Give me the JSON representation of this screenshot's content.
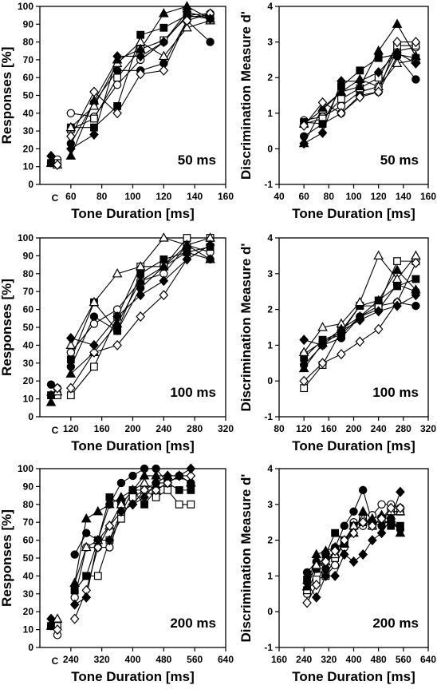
{
  "chart_data": [
    {
      "type": "line",
      "annotation": "50 ms",
      "xlabel": "Tone Duration [ms]",
      "ylabel": "Responses [%]",
      "xlim": [
        40,
        160
      ],
      "ylim": [
        0,
        100
      ],
      "xticks": [
        60,
        80,
        100,
        120,
        140,
        160
      ],
      "yticks": [
        0,
        10,
        20,
        30,
        40,
        50,
        60,
        70,
        80,
        90,
        100
      ],
      "xticklabels": [
        "60",
        "80",
        "100",
        "120",
        "140",
        "160"
      ],
      "yticklabels": [
        "0",
        "10",
        "20",
        "30",
        "40",
        "50",
        "60",
        "70",
        "80",
        "90",
        "100"
      ],
      "control_label": "C",
      "x": [
        60,
        75,
        90,
        105,
        120,
        135,
        150
      ],
      "series": [
        {
          "marker": "circle",
          "fill": "open",
          "control": 14,
          "values": [
            40,
            38,
            56,
            70,
            80,
            95,
            96
          ]
        },
        {
          "marker": "circle",
          "fill": "filled",
          "control": 12,
          "values": [
            23,
            46,
            64,
            64,
            68,
            92,
            80
          ]
        },
        {
          "marker": "square",
          "fill": "open",
          "control": 12,
          "values": [
            31,
            37,
            60,
            76,
            81,
            94,
            95
          ]
        },
        {
          "marker": "square",
          "fill": "filled",
          "control": 12,
          "values": [
            32,
            32,
            44,
            84,
            88,
            95,
            93
          ]
        },
        {
          "marker": "triangle",
          "fill": "open",
          "control": 11,
          "values": [
            32,
            44,
            68,
            80,
            72,
            88,
            92
          ]
        },
        {
          "marker": "triangle",
          "fill": "filled",
          "control": 12,
          "values": [
            16,
            47,
            70,
            76,
            96,
            100,
            93
          ]
        },
        {
          "marker": "diamond",
          "fill": "open",
          "control": 11,
          "values": [
            27,
            52,
            40,
            62,
            64,
            92,
            96
          ]
        },
        {
          "marker": "diamond",
          "fill": "filled",
          "control": 16,
          "values": [
            20,
            28,
            72,
            72,
            80,
            97,
            93
          ]
        }
      ]
    },
    {
      "type": "line",
      "annotation": "50 ms",
      "xlabel": "Tone Duration [ms]",
      "ylabel": "Discrimination Measure  d'",
      "xlim": [
        40,
        160
      ],
      "ylim": [
        -1,
        4
      ],
      "xticks": [
        40,
        60,
        80,
        100,
        120,
        140,
        160
      ],
      "yticks": [
        -1,
        0,
        1,
        2,
        3,
        4
      ],
      "xticklabels": [
        "40",
        "60",
        "80",
        "100",
        "120",
        "140",
        "160"
      ],
      "yticklabels": [
        "-1",
        "0",
        "1",
        "2",
        "3",
        "4"
      ],
      "x": [
        60,
        75,
        90,
        105,
        120,
        135,
        150
      ],
      "series": [
        {
          "marker": "circle",
          "fill": "open",
          "values": [
            0.8,
            0.9,
            1.2,
            1.6,
            1.75,
            2.75,
            2.85
          ]
        },
        {
          "marker": "circle",
          "fill": "filled",
          "values": [
            0.35,
            0.7,
            1.0,
            1.5,
            1.6,
            2.6,
            1.95
          ]
        },
        {
          "marker": "square",
          "fill": "open",
          "values": [
            0.7,
            0.85,
            1.4,
            1.7,
            2.0,
            2.9,
            2.9
          ]
        },
        {
          "marker": "square",
          "fill": "filled",
          "values": [
            0.75,
            0.7,
            1.75,
            2.2,
            2.55,
            2.65,
            2.55
          ]
        },
        {
          "marker": "triangle",
          "fill": "open",
          "values": [
            0.7,
            1.1,
            1.6,
            1.95,
            1.75,
            2.4,
            2.5
          ]
        },
        {
          "marker": "triangle",
          "fill": "filled",
          "values": [
            0.15,
            1.15,
            1.6,
            1.75,
            2.75,
            3.5,
            2.6
          ]
        },
        {
          "marker": "diamond",
          "fill": "open",
          "values": [
            0.65,
            1.3,
            1.0,
            1.45,
            1.6,
            3.0,
            3.0
          ]
        },
        {
          "marker": "diamond",
          "fill": "filled",
          "values": [
            0.15,
            0.45,
            1.9,
            1.9,
            2.15,
            2.7,
            2.4
          ]
        }
      ]
    },
    {
      "type": "line",
      "annotation": "100 ms",
      "xlabel": "Tone Duration [ms]",
      "ylabel": "Responses [%]",
      "xlim": [
        80,
        320
      ],
      "ylim": [
        0,
        100
      ],
      "xticks": [
        120,
        160,
        200,
        240,
        280,
        320
      ],
      "yticks": [
        0,
        10,
        20,
        30,
        40,
        50,
        60,
        70,
        80,
        90,
        100
      ],
      "xticklabels": [
        "120",
        "160",
        "200",
        "240",
        "280",
        "320"
      ],
      "yticklabels": [
        "0",
        "10",
        "20",
        "30",
        "40",
        "50",
        "60",
        "70",
        "80",
        "90",
        "100"
      ],
      "control_label": "C",
      "x": [
        120,
        150,
        180,
        210,
        240,
        270,
        300
      ],
      "series": [
        {
          "marker": "circle",
          "fill": "open",
          "control": 16,
          "values": [
            36,
            52,
            60,
            76,
            80,
            96,
            92
          ]
        },
        {
          "marker": "circle",
          "fill": "filled",
          "control": 18,
          "values": [
            28,
            56,
            48,
            72,
            84,
            92,
            88
          ]
        },
        {
          "marker": "square",
          "fill": "open",
          "control": 12,
          "values": [
            12,
            28,
            56,
            84,
            84,
            100,
            100
          ]
        },
        {
          "marker": "square",
          "fill": "filled",
          "control": 12,
          "values": [
            32,
            64,
            48,
            80,
            88,
            92,
            95
          ]
        },
        {
          "marker": "triangle",
          "fill": "open",
          "control": 14,
          "values": [
            40,
            64,
            80,
            84,
            100,
            96,
            100
          ]
        },
        {
          "marker": "triangle",
          "fill": "filled",
          "control": 8,
          "values": [
            24,
            36,
            52,
            76,
            84,
            96,
            88
          ]
        },
        {
          "marker": "diamond",
          "fill": "open",
          "control": 16,
          "values": [
            16,
            36,
            40,
            56,
            68,
            88,
            96
          ]
        },
        {
          "marker": "diamond",
          "fill": "filled",
          "control": 12,
          "values": [
            44,
            40,
            56,
            68,
            76,
            88,
            96
          ]
        }
      ]
    },
    {
      "type": "line",
      "annotation": "100 ms",
      "xlabel": "Tone Duration [ms]",
      "ylabel": "Discrimination Measure  d'",
      "xlim": [
        80,
        320
      ],
      "ylim": [
        -1,
        4
      ],
      "xticks": [
        80,
        120,
        160,
        200,
        240,
        280,
        320
      ],
      "yticks": [
        -1,
        0,
        1,
        2,
        3,
        4
      ],
      "xticklabels": [
        "80",
        "120",
        "160",
        "200",
        "240",
        "280",
        "320"
      ],
      "yticklabels": [
        "-1",
        "0",
        "1",
        "2",
        "3",
        "4"
      ],
      "x": [
        120,
        150,
        180,
        210,
        240,
        270,
        300
      ],
      "series": [
        {
          "marker": "circle",
          "fill": "open",
          "values": [
            0.75,
            1.1,
            1.3,
            1.8,
            2.0,
            2.7,
            2.5
          ]
        },
        {
          "marker": "circle",
          "fill": "filled",
          "values": [
            0.45,
            1.0,
            1.2,
            1.8,
            2.1,
            2.2,
            2.1
          ]
        },
        {
          "marker": "square",
          "fill": "open",
          "values": [
            -0.2,
            0.45,
            1.4,
            2.1,
            2.1,
            3.35,
            3.35
          ]
        },
        {
          "marker": "square",
          "fill": "filled",
          "values": [
            0.65,
            1.15,
            1.35,
            2.1,
            2.25,
            2.65,
            2.85
          ]
        },
        {
          "marker": "triangle",
          "fill": "open",
          "values": [
            0.8,
            1.5,
            1.6,
            2.2,
            3.5,
            2.85,
            3.5
          ]
        },
        {
          "marker": "triangle",
          "fill": "filled",
          "values": [
            0.35,
            1.05,
            1.45,
            1.8,
            2.25,
            3.1,
            2.55
          ]
        },
        {
          "marker": "diamond",
          "fill": "open",
          "values": [
            0.0,
            0.5,
            0.75,
            1.1,
            1.45,
            2.2,
            3.3
          ]
        },
        {
          "marker": "diamond",
          "fill": "filled",
          "values": [
            1.15,
            1.0,
            1.4,
            1.7,
            1.95,
            2.1,
            2.4
          ]
        }
      ]
    },
    {
      "type": "line",
      "annotation": "200 ms",
      "xlabel": "Tone Duration [ms]",
      "ylabel": "Responses [%]",
      "xlim": [
        160,
        640
      ],
      "ylim": [
        0,
        100
      ],
      "xticks": [
        240,
        320,
        400,
        480,
        560,
        640
      ],
      "yticks": [
        0,
        10,
        20,
        30,
        40,
        50,
        60,
        70,
        80,
        90,
        100
      ],
      "xticklabels": [
        "240",
        "320",
        "400",
        "480",
        "560",
        "640"
      ],
      "yticklabels": [
        "0",
        "10",
        "20",
        "30",
        "40",
        "50",
        "60",
        "70",
        "80",
        "90",
        "100"
      ],
      "control_label": "C",
      "x": [
        250,
        280,
        310,
        340,
        370,
        400,
        430,
        460,
        490,
        520,
        550
      ],
      "series": [
        {
          "marker": "circle",
          "fill": "open",
          "control": 7,
          "values": [
            28,
            56,
            56,
            56,
            75,
            88,
            88,
            92,
            92,
            96,
            92
          ]
        },
        {
          "marker": "circle",
          "fill": "filled",
          "control": 12,
          "values": [
            52,
            64,
            60,
            80,
            92,
            96,
            100,
            100,
            92,
            96,
            92
          ]
        },
        {
          "marker": "square",
          "fill": "open",
          "control": 12,
          "values": [
            32,
            40,
            40,
            60,
            72,
            84,
            88,
            84,
            88,
            80,
            80
          ]
        },
        {
          "marker": "square",
          "fill": "filled",
          "control": 12,
          "values": [
            32,
            40,
            60,
            84,
            80,
            88,
            80,
            88,
            92,
            88,
            88
          ]
        },
        {
          "marker": "triangle",
          "fill": "open",
          "control": 16,
          "values": [
            36,
            56,
            60,
            68,
            80,
            88,
            92,
            88,
            92,
            96,
            92
          ]
        },
        {
          "marker": "triangle",
          "fill": "filled",
          "control": 12,
          "values": [
            36,
            72,
            76,
            80,
            84,
            88,
            96,
            96,
            96,
            96,
            92
          ]
        },
        {
          "marker": "diamond",
          "fill": "open",
          "control": 10,
          "values": [
            16,
            32,
            56,
            68,
            76,
            80,
            88,
            88,
            92,
            96,
            96
          ]
        },
        {
          "marker": "diamond",
          "fill": "filled",
          "control": 16,
          "values": [
            24,
            28,
            60,
            60,
            76,
            80,
            84,
            92,
            96,
            96,
            100
          ]
        }
      ]
    },
    {
      "type": "line",
      "annotation": "200 ms",
      "xlabel": "Tone Duration [ms]",
      "ylabel": "Discrimination Measure  d'",
      "xlim": [
        160,
        640
      ],
      "ylim": [
        -1,
        4
      ],
      "xticks": [
        160,
        240,
        320,
        400,
        480,
        560,
        640
      ],
      "yticks": [
        -1,
        0,
        1,
        2,
        3,
        4
      ],
      "xticklabels": [
        "160",
        "240",
        "320",
        "400",
        "480",
        "560",
        "640"
      ],
      "yticklabels": [
        "-1",
        "0",
        "1",
        "2",
        "3",
        "4"
      ],
      "x": [
        250,
        280,
        310,
        340,
        370,
        400,
        430,
        460,
        490,
        520,
        550
      ],
      "series": [
        {
          "marker": "circle",
          "fill": "open",
          "values": [
            0.5,
            1.2,
            1.0,
            1.3,
            1.8,
            2.5,
            2.4,
            2.7,
            3.0,
            3.0,
            2.9
          ]
        },
        {
          "marker": "circle",
          "fill": "filled",
          "values": [
            1.1,
            1.4,
            1.2,
            1.8,
            2.4,
            2.8,
            3.4,
            2.5,
            2.4,
            2.6,
            2.3
          ]
        },
        {
          "marker": "square",
          "fill": "open",
          "values": [
            0.6,
            0.9,
            1.0,
            1.5,
            1.9,
            2.4,
            2.6,
            2.4,
            2.6,
            2.8,
            2.8
          ]
        },
        {
          "marker": "square",
          "fill": "filled",
          "values": [
            0.9,
            1.2,
            1.6,
            2.2,
            2.0,
            2.4,
            2.5,
            2.4,
            2.6,
            2.4,
            2.4
          ]
        },
        {
          "marker": "triangle",
          "fill": "open",
          "values": [
            0.7,
            1.3,
            1.4,
            1.6,
            1.9,
            2.4,
            2.6,
            2.4,
            2.6,
            2.8,
            2.8
          ]
        },
        {
          "marker": "triangle",
          "fill": "filled",
          "values": [
            0.7,
            1.6,
            1.7,
            1.8,
            1.9,
            2.2,
            2.8,
            2.6,
            2.7,
            2.6,
            2.2
          ]
        },
        {
          "marker": "diamond",
          "fill": "open",
          "values": [
            0.25,
            0.75,
            1.4,
            1.7,
            2.0,
            2.2,
            2.5,
            2.4,
            2.6,
            2.9,
            2.9
          ]
        },
        {
          "marker": "diamond",
          "fill": "filled",
          "values": [
            0.8,
            0.4,
            1.0,
            1.0,
            1.6,
            1.4,
            1.6,
            2.0,
            2.2,
            2.6,
            3.35
          ]
        }
      ]
    }
  ]
}
